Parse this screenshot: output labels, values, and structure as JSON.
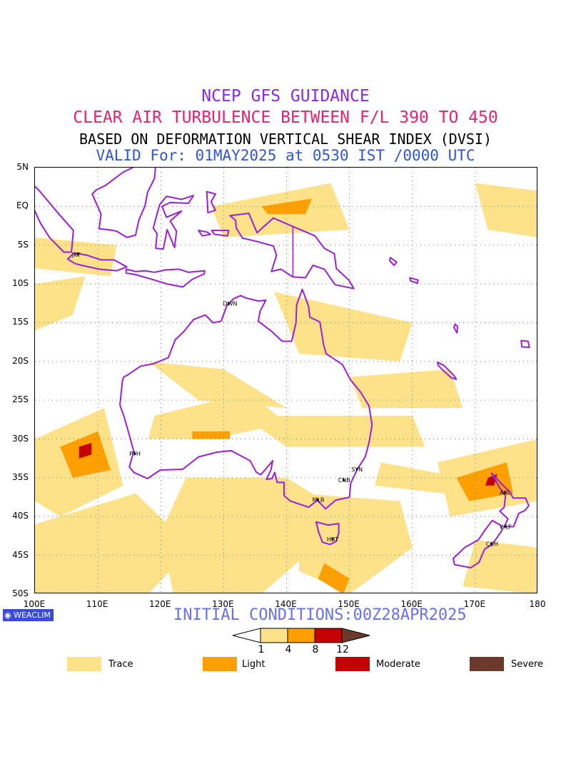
{
  "titles": {
    "line1": "NCEP GFS GUIDANCE",
    "line2": "CLEAR AIR TURBULENCE BETWEEN F/L 390 TO 450",
    "line3": "BASED ON DEFORMATION VERTICAL SHEAR INDEX (DVSI)",
    "line4": "VALID For: 01MAY2025 at 0530 IST /0000 UTC"
  },
  "colors": {
    "title1": "#8a2be2",
    "title2": "#e8236f",
    "title3": "#000000",
    "title4": "#2f55e0",
    "coast": "#9b1fd6",
    "trace": "#fde28a",
    "light": "#ff9f00",
    "moderate": "#c40000",
    "severe": "#6b3a2a",
    "initcond": "#6a6ff0"
  },
  "map": {
    "lat_labels": [
      "5N",
      "EQ",
      "5S",
      "10S",
      "15S",
      "20S",
      "25S",
      "30S",
      "35S",
      "40S",
      "45S",
      "50S"
    ],
    "lon_labels": [
      "100E",
      "110E",
      "120E",
      "130E",
      "140E",
      "150E",
      "160E",
      "170E",
      "180"
    ],
    "lon_range": [
      100,
      180
    ],
    "lat_range": [
      -50,
      5
    ],
    "grid": "dotted",
    "cities": [
      {
        "code": "JKT",
        "lon": 106.8,
        "lat": -6.2
      },
      {
        "code": "DWN",
        "lon": 130.8,
        "lat": -12.5
      },
      {
        "code": "PTH",
        "lon": 115.9,
        "lat": -31.9
      },
      {
        "code": "SYN",
        "lon": 151.2,
        "lat": -33.9
      },
      {
        "code": "CNB",
        "lon": 149.1,
        "lat": -35.3
      },
      {
        "code": "MLB",
        "lon": 145.0,
        "lat": -37.8
      },
      {
        "code": "HBT",
        "lon": 147.3,
        "lat": -42.9
      },
      {
        "code": "AKL",
        "lon": 174.8,
        "lat": -36.9
      },
      {
        "code": "WLT",
        "lon": 174.8,
        "lat": -41.3
      },
      {
        "code": "CCH",
        "lon": 172.6,
        "lat": -43.5
      }
    ]
  },
  "badge": "WEACLIM",
  "initial_conditions": "INITIAL CONDITIONS:00Z28APR2025",
  "colorbar": {
    "ticks": [
      "1",
      "4",
      "8",
      "12"
    ]
  },
  "legend": [
    {
      "label": "Trace",
      "color": "#fde28a"
    },
    {
      "label": "Light",
      "color": "#ff9f00"
    },
    {
      "label": "Moderate",
      "color": "#c40000"
    },
    {
      "label": "Severe",
      "color": "#6b3a2a"
    }
  ]
}
